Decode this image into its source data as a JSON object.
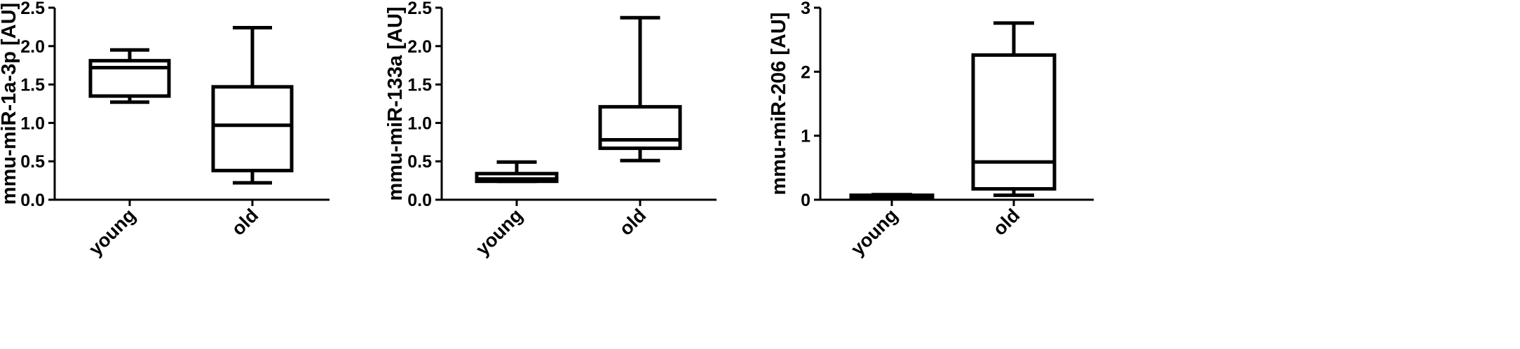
{
  "chart_data": [
    {
      "type": "box",
      "ylabel": "mmu-miR-1a-3p [AU]",
      "ylim": [
        0,
        2.5
      ],
      "yticks": [
        "0.0",
        "0.5",
        "1.0",
        "1.5",
        "2.0",
        "2.5"
      ],
      "categories": [
        "young",
        "old"
      ],
      "boxes": [
        {
          "min": 1.27,
          "q1": 1.35,
          "median": 1.72,
          "q3": 1.81,
          "max": 1.95
        },
        {
          "min": 0.22,
          "q1": 0.38,
          "median": 0.97,
          "q3": 1.47,
          "max": 2.24
        }
      ]
    },
    {
      "type": "box",
      "ylabel": "mmu-miR-133a [AU]",
      "ylim": [
        0,
        2.5
      ],
      "yticks": [
        "0.0",
        "0.5",
        "1.0",
        "1.5",
        "2.0",
        "2.5"
      ],
      "categories": [
        "young",
        "old"
      ],
      "boxes": [
        {
          "min": 0.24,
          "q1": 0.24,
          "median": 0.27,
          "q3": 0.34,
          "max": 0.49
        },
        {
          "min": 0.51,
          "q1": 0.67,
          "median": 0.78,
          "q3": 1.21,
          "max": 2.37
        }
      ]
    },
    {
      "type": "box",
      "ylabel": "mmu-miR-206 [AU]",
      "ylim": [
        0,
        3
      ],
      "yticks": [
        "0",
        "1",
        "2",
        "3"
      ],
      "categories": [
        "young",
        "old"
      ],
      "boxes": [
        {
          "min": 0.02,
          "q1": 0.03,
          "median": 0.05,
          "q3": 0.07,
          "max": 0.08
        },
        {
          "min": 0.07,
          "q1": 0.17,
          "median": 0.59,
          "q3": 2.26,
          "max": 2.76
        }
      ]
    }
  ]
}
